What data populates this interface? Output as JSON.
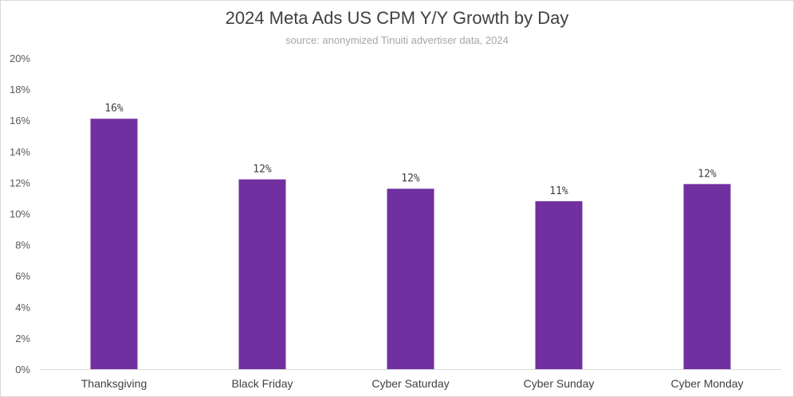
{
  "chart_data": {
    "type": "bar",
    "title": "2024 Meta Ads US CPM Y/Y Growth by Day",
    "subtitle": "source: anonymized Tinuiti advertiser data, 2024",
    "categories": [
      "Thanksgiving",
      "Black Friday",
      "Cyber Saturday",
      "Cyber Sunday",
      "Cyber Monday"
    ],
    "values": [
      16.1,
      12.2,
      11.6,
      10.8,
      11.9
    ],
    "data_labels": [
      "16%",
      "12%",
      "12%",
      "11%",
      "12%"
    ],
    "y_ticks": [
      "0%",
      "2%",
      "4%",
      "6%",
      "8%",
      "10%",
      "12%",
      "14%",
      "16%",
      "18%",
      "20%"
    ],
    "ylim": [
      0,
      20
    ],
    "y_unit": "%",
    "xlabel": "",
    "ylabel": "",
    "grid": false,
    "legend": "none",
    "colors": {
      "bar": "#7030a0",
      "axis": "#d9d9d9",
      "title": "#404040",
      "subtitle": "#a6a6a6"
    }
  }
}
